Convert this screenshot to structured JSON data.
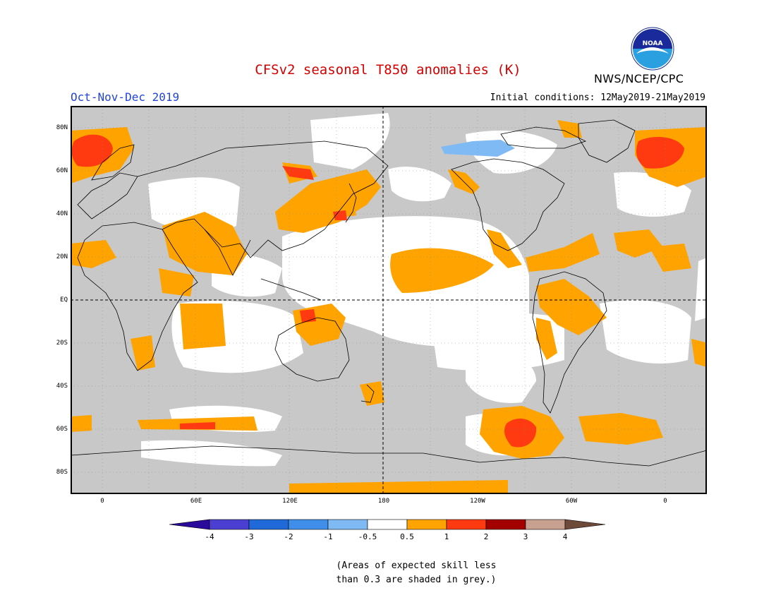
{
  "title": "CFSv2 seasonal T850 anomalies (K)",
  "organization": "NWS/NCEP/CPC",
  "logo_text": "NOAA",
  "season": "Oct-Nov-Dec 2019",
  "initial_conditions": "Initial conditions: 12May2019-21May2019",
  "lat_labels": [
    "80N",
    "60N",
    "40N",
    "20N",
    "EQ",
    "20S",
    "40S",
    "60S",
    "80S"
  ],
  "lon_labels": [
    "0",
    "60E",
    "120E",
    "180",
    "120W",
    "60W",
    "0"
  ],
  "colorbar": {
    "labels": [
      "-4",
      "-3",
      "-2",
      "-1",
      "-0.5",
      "0.5",
      "1",
      "2",
      "3",
      "4"
    ],
    "colors": [
      "#2a0a9a",
      "#4a3fd0",
      "#1f6ad8",
      "#3f8fea",
      "#7fbaf5",
      "#ffffff",
      "#ffa300",
      "#ff3a10",
      "#a30000",
      "#c8a090",
      "#6e4a3a"
    ]
  },
  "map_colors": {
    "grey": "#c8c8c8",
    "orange": "#ffa300",
    "red": "#ff3a10",
    "blue": "#7fbaf5",
    "white": "#ffffff"
  },
  "note_line1": "(Areas of expected skill less",
  "note_line2": "than 0.3 are shaded in grey.)"
}
